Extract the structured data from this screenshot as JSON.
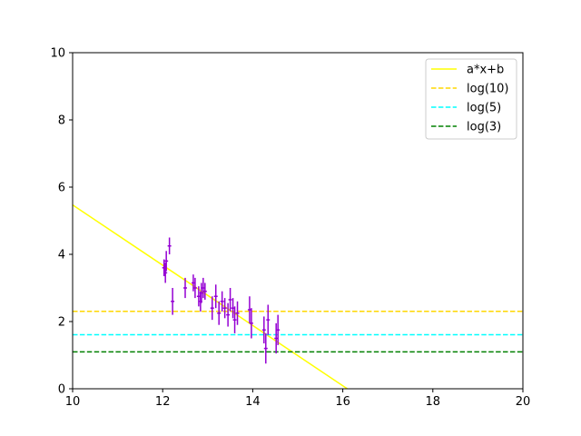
{
  "chart_data": {
    "type": "scatter",
    "title": "",
    "xlabel": "",
    "ylabel": "",
    "xlim": [
      10,
      20
    ],
    "ylim": [
      0,
      10
    ],
    "xticks": [
      "10",
      "12",
      "14",
      "16",
      "18",
      "20"
    ],
    "yticks": [
      "0",
      "2",
      "4",
      "6",
      "8",
      "10"
    ],
    "grid": false,
    "legend_position": "top-right",
    "points": {
      "color": "#9400d3",
      "values": [
        {
          "x": 12.03,
          "y": 3.6,
          "xerr": 0.04,
          "yerr": 0.25
        },
        {
          "x": 12.08,
          "y": 3.8,
          "xerr": 0.04,
          "yerr": 0.3
        },
        {
          "x": 12.06,
          "y": 3.45,
          "xerr": 0.04,
          "yerr": 0.3
        },
        {
          "x": 12.15,
          "y": 4.25,
          "xerr": 0.04,
          "yerr": 0.25
        },
        {
          "x": 12.22,
          "y": 2.6,
          "xerr": 0.04,
          "yerr": 0.4
        },
        {
          "x": 12.5,
          "y": 3.0,
          "xerr": 0.04,
          "yerr": 0.3
        },
        {
          "x": 12.68,
          "y": 3.15,
          "xerr": 0.04,
          "yerr": 0.25
        },
        {
          "x": 12.72,
          "y": 3.0,
          "xerr": 0.04,
          "yerr": 0.3
        },
        {
          "x": 12.8,
          "y": 2.75,
          "xerr": 0.04,
          "yerr": 0.3
        },
        {
          "x": 12.84,
          "y": 2.6,
          "xerr": 0.04,
          "yerr": 0.3
        },
        {
          "x": 12.86,
          "y": 2.85,
          "xerr": 0.04,
          "yerr": 0.3
        },
        {
          "x": 12.9,
          "y": 3.0,
          "xerr": 0.04,
          "yerr": 0.3
        },
        {
          "x": 12.94,
          "y": 2.9,
          "xerr": 0.04,
          "yerr": 0.25
        },
        {
          "x": 13.1,
          "y": 2.4,
          "xerr": 0.04,
          "yerr": 0.35
        },
        {
          "x": 13.18,
          "y": 2.75,
          "xerr": 0.04,
          "yerr": 0.35
        },
        {
          "x": 13.25,
          "y": 2.25,
          "xerr": 0.04,
          "yerr": 0.35
        },
        {
          "x": 13.32,
          "y": 2.6,
          "xerr": 0.04,
          "yerr": 0.3
        },
        {
          "x": 13.38,
          "y": 2.4,
          "xerr": 0.04,
          "yerr": 0.3
        },
        {
          "x": 13.45,
          "y": 2.2,
          "xerr": 0.04,
          "yerr": 0.35
        },
        {
          "x": 13.5,
          "y": 2.65,
          "xerr": 0.04,
          "yerr": 0.35
        },
        {
          "x": 13.56,
          "y": 2.4,
          "xerr": 0.04,
          "yerr": 0.3
        },
        {
          "x": 13.6,
          "y": 2.05,
          "xerr": 0.04,
          "yerr": 0.4
        },
        {
          "x": 13.66,
          "y": 2.25,
          "xerr": 0.04,
          "yerr": 0.35
        },
        {
          "x": 13.93,
          "y": 2.35,
          "xerr": 0.04,
          "yerr": 0.4
        },
        {
          "x": 13.97,
          "y": 1.95,
          "xerr": 0.04,
          "yerr": 0.45
        },
        {
          "x": 14.25,
          "y": 1.75,
          "xerr": 0.04,
          "yerr": 0.4
        },
        {
          "x": 14.29,
          "y": 1.2,
          "xerr": 0.04,
          "yerr": 0.45
        },
        {
          "x": 14.34,
          "y": 2.05,
          "xerr": 0.04,
          "yerr": 0.45
        },
        {
          "x": 14.52,
          "y": 1.5,
          "xerr": 0.04,
          "yerr": 0.45
        },
        {
          "x": 14.56,
          "y": 1.75,
          "xerr": 0.04,
          "yerr": 0.45
        }
      ]
    },
    "lines": [
      {
        "name": "a*x+b",
        "kind": "linear",
        "x0": 10,
        "y0": 5.47,
        "x1": 16.1,
        "y1": 0.0,
        "color": "#ffff00",
        "dash": "solid"
      },
      {
        "name": "log(10)",
        "kind": "hline",
        "y": 2.3026,
        "color": "#ffd700",
        "dash": "dashed"
      },
      {
        "name": "log(5)",
        "kind": "hline",
        "y": 1.6094,
        "color": "#00ffff",
        "dash": "dashed"
      },
      {
        "name": "log(3)",
        "kind": "hline",
        "y": 1.0986,
        "color": "#008000",
        "dash": "dashed"
      }
    ]
  }
}
